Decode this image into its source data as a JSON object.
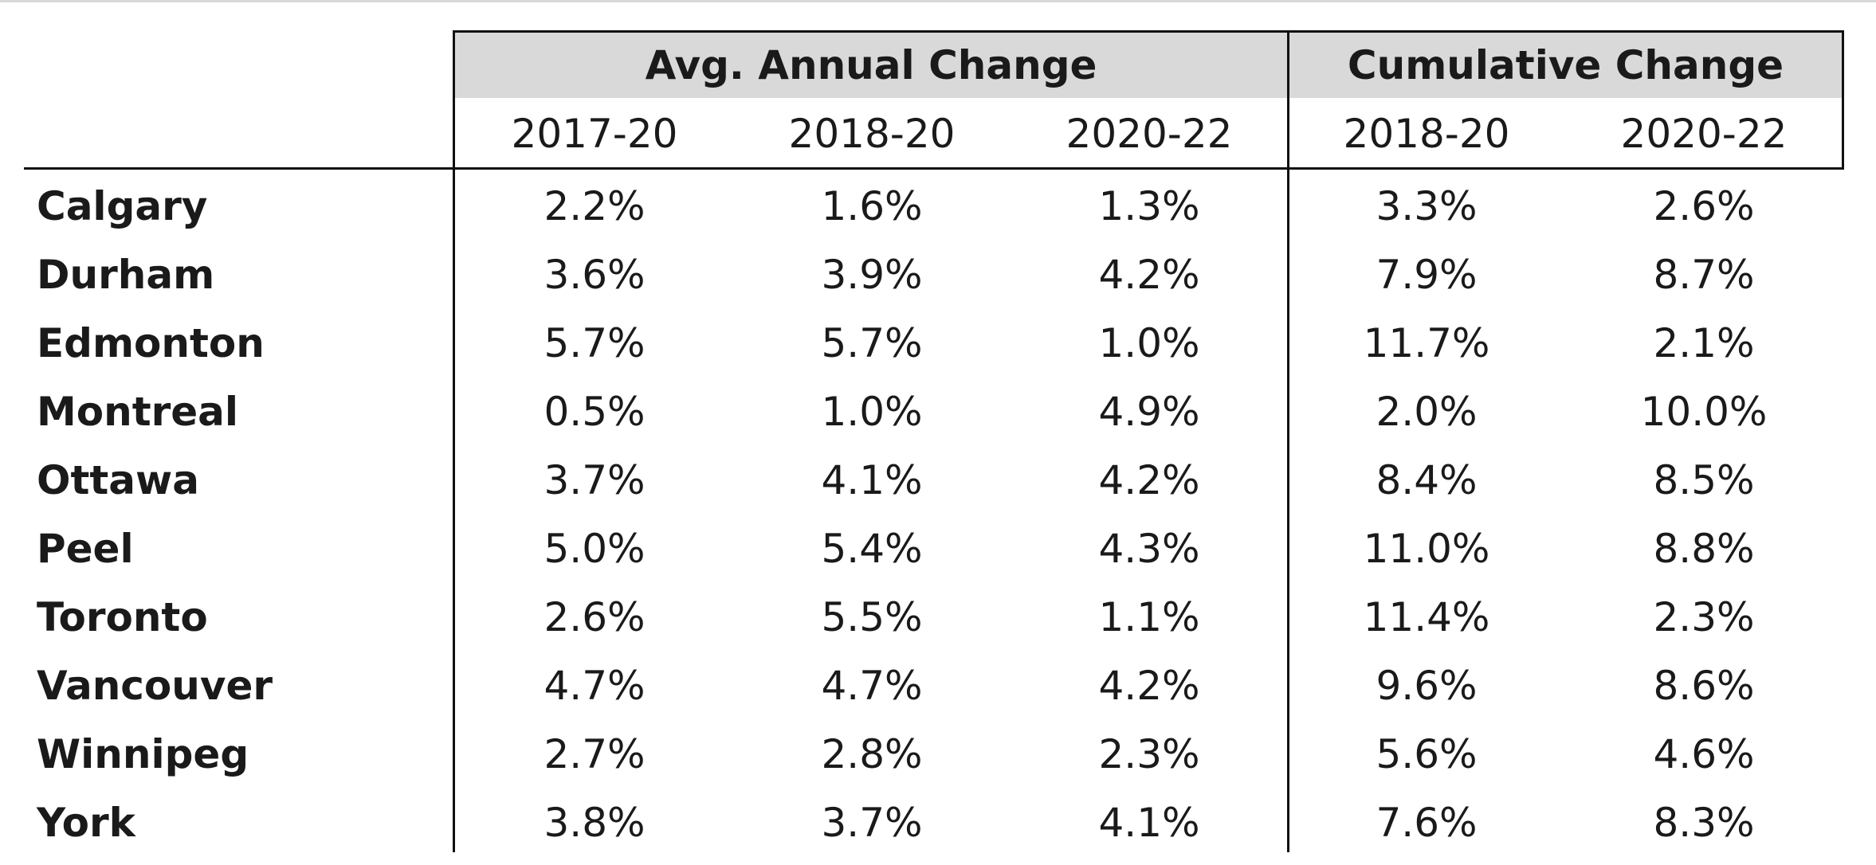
{
  "table": {
    "groups": [
      {
        "label": "Avg. Annual Change"
      },
      {
        "label": "Cumulative Change"
      }
    ],
    "columns": [
      "2017-20",
      "2018-20",
      "2020-22",
      "2018-20",
      "2020-22"
    ],
    "rows": [
      {
        "city": "Calgary",
        "values": [
          "2.2%",
          "1.6%",
          "1.3%",
          "3.3%",
          "2.6%"
        ]
      },
      {
        "city": "Durham",
        "values": [
          "3.6%",
          "3.9%",
          "4.2%",
          "7.9%",
          "8.7%"
        ]
      },
      {
        "city": "Edmonton",
        "values": [
          "5.7%",
          "5.7%",
          "1.0%",
          "11.7%",
          "2.1%"
        ]
      },
      {
        "city": "Montreal",
        "values": [
          "0.5%",
          "1.0%",
          "4.9%",
          "2.0%",
          "10.0%"
        ]
      },
      {
        "city": "Ottawa",
        "values": [
          "3.7%",
          "4.1%",
          "4.2%",
          "8.4%",
          "8.5%"
        ]
      },
      {
        "city": "Peel",
        "values": [
          "5.0%",
          "5.4%",
          "4.3%",
          "11.0%",
          "8.8%"
        ]
      },
      {
        "city": "Toronto",
        "values": [
          "2.6%",
          "5.5%",
          "1.1%",
          "11.4%",
          "2.3%"
        ]
      },
      {
        "city": "Vancouver",
        "values": [
          "4.7%",
          "4.7%",
          "4.2%",
          "9.6%",
          "8.6%"
        ]
      },
      {
        "city": "Winnipeg",
        "values": [
          "2.7%",
          "2.8%",
          "2.3%",
          "5.6%",
          "4.6%"
        ]
      },
      {
        "city": "York",
        "values": [
          "3.8%",
          "3.7%",
          "4.1%",
          "7.6%",
          "8.3%"
        ]
      }
    ]
  }
}
